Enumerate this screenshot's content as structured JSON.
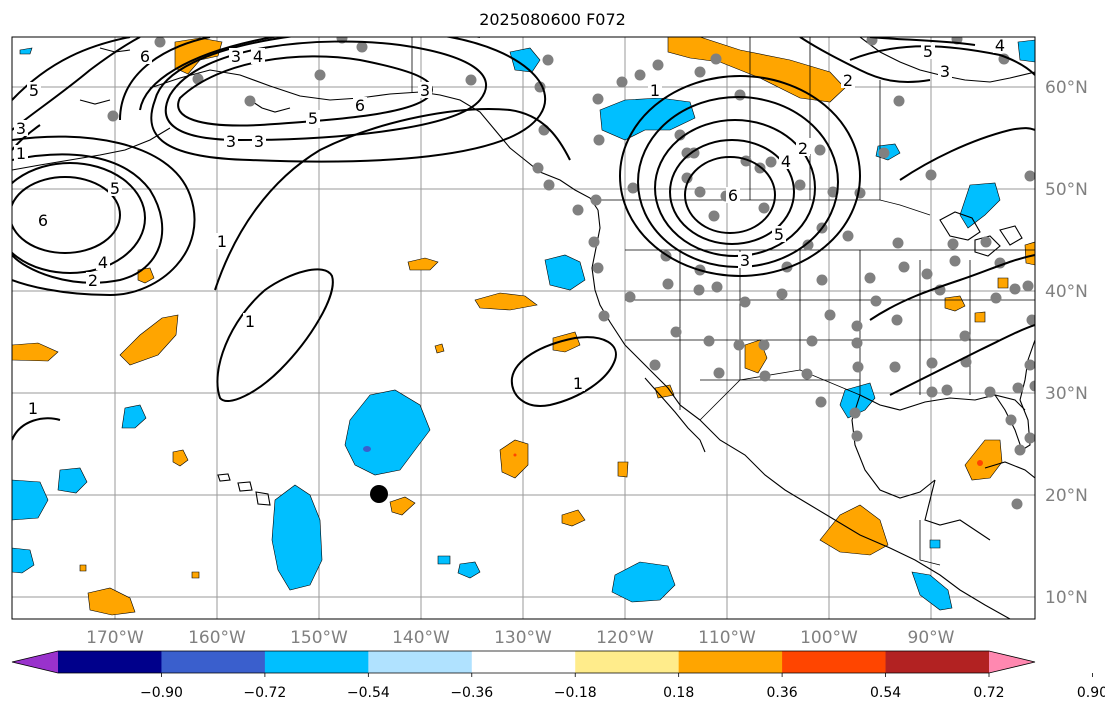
{
  "title": "2025080600 F072",
  "lon_ticks": [
    "170°W",
    "160°W",
    "150°W",
    "140°W",
    "130°W",
    "120°W",
    "110°W",
    "100°W",
    "90°W"
  ],
  "lat_ticks": [
    "60°N",
    "50°N",
    "40°N",
    "30°N",
    "20°N",
    "10°N"
  ],
  "colorbar": {
    "ticks": [
      "−0.90",
      "−0.72",
      "−0.54",
      "−0.36",
      "−0.18",
      "0.18",
      "0.36",
      "0.54",
      "0.72",
      "0.90"
    ],
    "colors": [
      "#9932cc",
      "#00008b",
      "#3a5fcd",
      "#00bfff",
      "#b0e2ff",
      "#ffffff",
      "#ffec8b",
      "#ffa500",
      "#ff4500",
      "#b22222",
      "#ff88b0"
    ]
  },
  "contour_labels": [
    "3",
    "4",
    "6",
    "5",
    "3",
    "3",
    "6",
    "5",
    "3",
    "1",
    "2",
    "4",
    "5",
    "6",
    "1",
    "1",
    "1",
    "4",
    "2",
    "5",
    "6",
    "5",
    "3",
    "1",
    "2",
    "4",
    "3",
    "2",
    "5",
    "3",
    "1"
  ],
  "colors": {
    "land_point": "#808080",
    "marker": "#000000",
    "negative_shade": "#00bfff",
    "positive_shade": "#ffa500"
  }
}
